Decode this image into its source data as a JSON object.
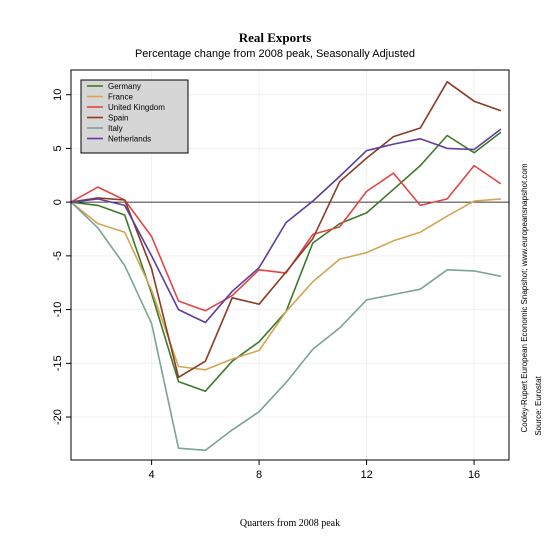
{
  "chart_data": {
    "type": "line",
    "title": "Real Exports",
    "subtitle": "Percentage change from 2008 peak, Seasonally Adjusted",
    "xlabel": "Quarters from 2008 peak",
    "ylabel": "",
    "xlim": [
      1,
      17.3
    ],
    "ylim": [
      -24,
      12.3
    ],
    "x_ticks": [
      4,
      8,
      12,
      16
    ],
    "y_ticks": [
      10,
      5,
      0,
      -5,
      -10,
      -15,
      -20
    ],
    "grid": true,
    "legend_position": "top-left",
    "reference_line": 0,
    "source_lines": [
      "Cooley-Rupert European Economic Snapshot; www.europeansnapshot.com",
      "Source: Eurostat"
    ],
    "x": [
      1,
      2,
      3,
      4,
      5,
      6,
      7,
      8,
      9,
      10,
      11,
      12,
      13,
      14,
      15,
      16,
      17
    ],
    "series": [
      {
        "name": "Germany",
        "color": "#3d7a2a",
        "values": [
          0,
          -0.3,
          -1.2,
          -8.5,
          -16.7,
          -17.6,
          -14.8,
          -13,
          -10.2,
          -3.8,
          -2,
          -1,
          1.2,
          3.4,
          6.2,
          4.6,
          6.5
        ]
      },
      {
        "name": "France",
        "color": "#d4a554",
        "values": [
          0,
          -2,
          -2.8,
          -8.2,
          -15.3,
          -15.6,
          -14.6,
          -13.8,
          -10.2,
          -7.4,
          -5.3,
          -4.7,
          -3.6,
          -2.8,
          -1.3,
          0.1,
          0.3
        ]
      },
      {
        "name": "United Kingdom",
        "color": "#e24545",
        "values": [
          0,
          1.4,
          0.2,
          -3.2,
          -9.2,
          -10.1,
          -8.7,
          -6.3,
          -6.6,
          -3,
          -2.3,
          1,
          2.7,
          -0.3,
          0.3,
          3.4,
          1.7
        ]
      },
      {
        "name": "Spain",
        "color": "#8b3a25",
        "values": [
          0,
          0.4,
          0.2,
          -6.2,
          -16.3,
          -14.8,
          -8.9,
          -9.5,
          -6.5,
          -3.4,
          1.9,
          4.1,
          6.1,
          6.9,
          11.2,
          9.4,
          8.5
        ]
      },
      {
        "name": "Italy",
        "color": "#7aa494",
        "values": [
          0,
          -2.4,
          -5.9,
          -11.3,
          -22.9,
          -23.1,
          -21.2,
          -19.5,
          -16.8,
          -13.7,
          -11.7,
          -9.1,
          -8.6,
          -8.1,
          -6.3,
          -6.4,
          -6.9
        ]
      },
      {
        "name": "Netherlands",
        "color": "#5e3d9c",
        "values": [
          0,
          0.3,
          -0.3,
          -5,
          -10,
          -11.2,
          -8.3,
          -6.1,
          -1.9,
          0.1,
          2.4,
          4.8,
          5.4,
          5.9,
          5,
          4.9,
          6.8
        ]
      }
    ]
  }
}
